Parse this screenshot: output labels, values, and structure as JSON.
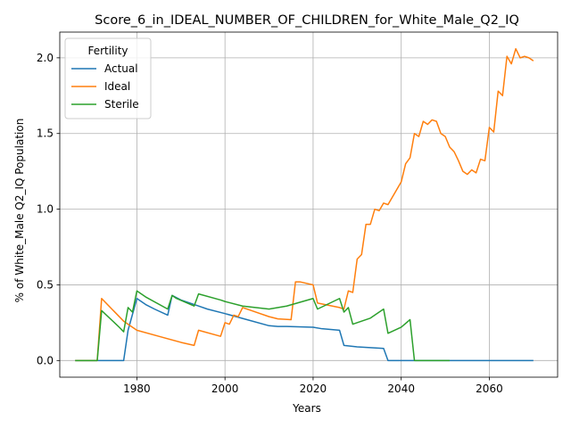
{
  "chart_data": {
    "type": "line",
    "title": "Score_6_in_IDEAL_NUMBER_OF_CHILDREN_for_White_Male_Q2_IQ",
    "xlabel": "Years",
    "ylabel": "% of White_Male Q2_IQ Population",
    "xlim": [
      1962.5,
      2075.5
    ],
    "ylim": [
      -0.11,
      2.17
    ],
    "xticks": [
      1980,
      2000,
      2020,
      2040,
      2060
    ],
    "yticks": [
      0.0,
      0.5,
      1.0,
      1.5,
      2.0
    ],
    "xtick_labels": [
      "1980",
      "2000",
      "2020",
      "2040",
      "2060"
    ],
    "ytick_labels": [
      "0.0",
      "0.5",
      "1.0",
      "1.5",
      "2.0"
    ],
    "grid": true,
    "legend": {
      "title": "Fertility",
      "position": "top-left"
    },
    "series": [
      {
        "name": "Actual",
        "color": "#1f77b4",
        "points": [
          [
            1966,
            0
          ],
          [
            1971,
            0
          ],
          [
            1977,
            0
          ],
          [
            1978,
            0.2
          ],
          [
            1980,
            0.41
          ],
          [
            1982,
            0.37
          ],
          [
            1984,
            0.34
          ],
          [
            1987,
            0.3
          ],
          [
            1988,
            0.43
          ],
          [
            1990,
            0.4
          ],
          [
            1994,
            0.36
          ],
          [
            1996,
            0.34
          ],
          [
            2000,
            0.31
          ],
          [
            2005,
            0.27
          ],
          [
            2010,
            0.23
          ],
          [
            2012,
            0.225
          ],
          [
            2014,
            0.225
          ],
          [
            2020,
            0.22
          ],
          [
            2022,
            0.21
          ],
          [
            2026,
            0.2
          ],
          [
            2027,
            0.1
          ],
          [
            2030,
            0.09
          ],
          [
            2036,
            0.08
          ],
          [
            2037,
            0
          ],
          [
            2070,
            0
          ]
        ]
      },
      {
        "name": "Ideal",
        "color": "#ff7f0e",
        "points": [
          [
            1966,
            0
          ],
          [
            1971,
            0
          ],
          [
            1972,
            0.41
          ],
          [
            1977,
            0.26
          ],
          [
            1980,
            0.2
          ],
          [
            1985,
            0.16
          ],
          [
            1990,
            0.12
          ],
          [
            1993,
            0.1
          ],
          [
            1994,
            0.2
          ],
          [
            1999,
            0.16
          ],
          [
            2000,
            0.25
          ],
          [
            2001,
            0.24
          ],
          [
            2002,
            0.3
          ],
          [
            2003,
            0.29
          ],
          [
            2004,
            0.35
          ],
          [
            2006,
            0.33
          ],
          [
            2010,
            0.29
          ],
          [
            2012,
            0.275
          ],
          [
            2015,
            0.27
          ],
          [
            2016,
            0.52
          ],
          [
            2017,
            0.52
          ],
          [
            2020,
            0.5
          ],
          [
            2021,
            0.38
          ],
          [
            2026,
            0.35
          ],
          [
            2027,
            0.34
          ],
          [
            2028,
            0.46
          ],
          [
            2029,
            0.45
          ],
          [
            2030,
            0.67
          ],
          [
            2031,
            0.7
          ],
          [
            2032,
            0.9
          ],
          [
            2033,
            0.9
          ],
          [
            2034,
            1.0
          ],
          [
            2035,
            0.99
          ],
          [
            2036,
            1.04
          ],
          [
            2037,
            1.03
          ],
          [
            2040,
            1.18
          ],
          [
            2041,
            1.3
          ],
          [
            2042,
            1.34
          ],
          [
            2043,
            1.5
          ],
          [
            2044,
            1.48
          ],
          [
            2045,
            1.58
          ],
          [
            2046,
            1.56
          ],
          [
            2047,
            1.59
          ],
          [
            2048,
            1.58
          ],
          [
            2049,
            1.5
          ],
          [
            2050,
            1.48
          ],
          [
            2051,
            1.41
          ],
          [
            2052,
            1.38
          ],
          [
            2053,
            1.32
          ],
          [
            2054,
            1.25
          ],
          [
            2055,
            1.23
          ],
          [
            2056,
            1.26
          ],
          [
            2057,
            1.24
          ],
          [
            2058,
            1.33
          ],
          [
            2059,
            1.32
          ],
          [
            2060,
            1.54
          ],
          [
            2061,
            1.51
          ],
          [
            2062,
            1.78
          ],
          [
            2063,
            1.75
          ],
          [
            2064,
            2.01
          ],
          [
            2065,
            1.96
          ],
          [
            2066,
            2.06
          ],
          [
            2067,
            2.0
          ],
          [
            2068,
            2.01
          ],
          [
            2069,
            2.0
          ],
          [
            2070,
            1.98
          ]
        ]
      },
      {
        "name": "Sterile",
        "color": "#2ca02c",
        "points": [
          [
            1966,
            0
          ],
          [
            1971,
            0
          ],
          [
            1972,
            0.33
          ],
          [
            1976,
            0.22
          ],
          [
            1977,
            0.19
          ],
          [
            1978,
            0.35
          ],
          [
            1979,
            0.32
          ],
          [
            1980,
            0.46
          ],
          [
            1982,
            0.42
          ],
          [
            1987,
            0.34
          ],
          [
            1988,
            0.43
          ],
          [
            1989,
            0.41
          ],
          [
            1993,
            0.36
          ],
          [
            1994,
            0.44
          ],
          [
            1999,
            0.4
          ],
          [
            2000,
            0.39
          ],
          [
            2004,
            0.36
          ],
          [
            2010,
            0.34
          ],
          [
            2014,
            0.36
          ],
          [
            2020,
            0.41
          ],
          [
            2021,
            0.34
          ],
          [
            2026,
            0.41
          ],
          [
            2027,
            0.32
          ],
          [
            2028,
            0.35
          ],
          [
            2029,
            0.24
          ],
          [
            2033,
            0.28
          ],
          [
            2036,
            0.34
          ],
          [
            2037,
            0.18
          ],
          [
            2040,
            0.22
          ],
          [
            2042,
            0.27
          ],
          [
            2043,
            0
          ],
          [
            2051,
            0
          ]
        ]
      }
    ]
  }
}
